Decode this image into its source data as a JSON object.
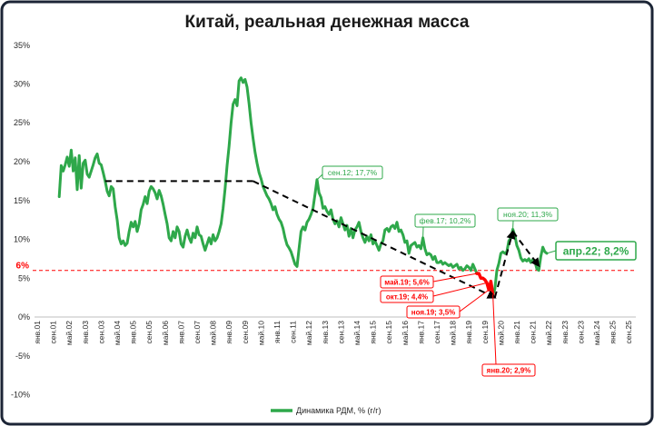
{
  "chart_data": {
    "type": "line",
    "title": "Китай, реальная денежная масса",
    "ylim": [
      -10,
      35
    ],
    "y_ticks": [
      35,
      30,
      25,
      20,
      15,
      10,
      5,
      0,
      -5,
      -10
    ],
    "y_tick_labels": [
      "35%",
      "30%",
      "25%",
      "20%",
      "15%",
      "10%",
      "5%",
      "0%",
      "-5%",
      "-10%"
    ],
    "xlim": [
      "янв.01",
      "сен.25"
    ],
    "x_ticks": [
      "янв.01",
      "сен.01",
      "май.02",
      "янв.03",
      "сен.03",
      "май.04",
      "янв.05",
      "сен.05",
      "май.06",
      "янв.07",
      "сен.07",
      "май.08",
      "янв.09",
      "сен.09",
      "май.10",
      "янв.11",
      "сен.11",
      "май.12",
      "янв.13",
      "сен.13",
      "май.14",
      "янв.15",
      "сен.15",
      "май.16",
      "янв.17",
      "сен.17",
      "май.18",
      "янв.19",
      "сен.19",
      "май.20",
      "янв.21",
      "сен.21",
      "май.22",
      "янв.23",
      "сен.23",
      "май.24",
      "янв.25",
      "сен.25"
    ],
    "grid": false,
    "legend_position": "bottom",
    "series": [
      {
        "name": "Динамика РДМ, % (г/г)",
        "color": "#2ea84a",
        "x": [
          "дек.01",
          "янв.02",
          "фев.02",
          "мар.02",
          "апр.02",
          "май.02",
          "июн.02",
          "июл.02",
          "авг.02",
          "сен.02",
          "окт.02",
          "ноя.02",
          "дек.02",
          "янв.03",
          "фев.03",
          "мар.03",
          "апр.03",
          "май.03",
          "июн.03",
          "июл.03",
          "авг.03",
          "сен.03",
          "окт.03",
          "ноя.03",
          "дек.03",
          "янв.04",
          "фев.04",
          "мар.04",
          "апр.04",
          "май.04",
          "июн.04",
          "июл.04",
          "авг.04",
          "сен.04",
          "окт.04",
          "ноя.04",
          "дек.04",
          "янв.05",
          "фев.05",
          "мар.05",
          "апр.05",
          "май.05",
          "июн.05",
          "июл.05",
          "авг.05",
          "сен.05",
          "окт.05",
          "ноя.05",
          "дек.05",
          "янв.06",
          "фев.06",
          "мар.06",
          "апр.06",
          "май.06",
          "июн.06",
          "июл.06",
          "авг.06",
          "сен.06",
          "окт.06",
          "ноя.06",
          "дек.06",
          "янв.07",
          "фев.07",
          "мар.07",
          "апр.07",
          "май.07",
          "июн.07",
          "июл.07",
          "авг.07",
          "сен.07",
          "окт.07",
          "ноя.07",
          "дек.07",
          "янв.08",
          "фев.08",
          "мар.08",
          "апр.08",
          "май.08",
          "июн.08",
          "июл.08",
          "авг.08",
          "сен.08",
          "окт.08",
          "ноя.08",
          "дек.08",
          "янв.09",
          "фев.09",
          "мар.09",
          "апр.09",
          "май.09",
          "июн.09",
          "июл.09",
          "авг.09",
          "сен.09",
          "окт.09",
          "ноя.09",
          "дек.09",
          "янв.10",
          "фев.10",
          "мар.10",
          "апр.10",
          "май.10",
          "июн.10",
          "июл.10",
          "авг.10",
          "сен.10",
          "окт.10",
          "ноя.10",
          "дек.10",
          "янв.11",
          "фев.11",
          "мар.11",
          "апр.11",
          "май.11",
          "июн.11",
          "июл.11",
          "авг.11",
          "сен.11",
          "окт.11",
          "ноя.11",
          "дек.11",
          "янв.12",
          "фев.12",
          "мар.12",
          "апр.12",
          "май.12",
          "июн.12",
          "июл.12",
          "авг.12",
          "сен.12",
          "окт.12",
          "ноя.12",
          "дек.12",
          "янв.13",
          "фев.13",
          "мар.13",
          "апр.13",
          "май.13",
          "июн.13",
          "июл.13",
          "авг.13",
          "сен.13",
          "окт.13",
          "ноя.13",
          "дек.13",
          "янв.14",
          "фев.14",
          "мар.14",
          "апр.14",
          "май.14",
          "июн.14",
          "июл.14",
          "авг.14",
          "сен.14",
          "окт.14",
          "ноя.14",
          "дек.14",
          "янв.15",
          "фев.15",
          "мар.15",
          "апр.15",
          "май.15",
          "июн.15",
          "июл.15",
          "авг.15",
          "сен.15",
          "окт.15",
          "ноя.15",
          "дек.15",
          "янв.16",
          "фев.16",
          "мар.16",
          "апр.16",
          "май.16",
          "июн.16",
          "июл.16",
          "авг.16",
          "сен.16",
          "окт.16",
          "ноя.16",
          "дек.16",
          "янв.17",
          "фев.17",
          "мар.17",
          "апр.17",
          "май.17",
          "июн.17",
          "июл.17",
          "авг.17",
          "сен.17",
          "окт.17",
          "ноя.17",
          "дек.17",
          "янв.18",
          "фев.18",
          "мар.18",
          "апр.18",
          "май.18",
          "июн.18",
          "июл.18",
          "авг.18",
          "сен.18",
          "окт.18",
          "ноя.18",
          "дек.18",
          "янв.19",
          "фев.19",
          "мар.19",
          "апр.19",
          "май.19",
          "июн.19",
          "июл.19",
          "авг.19",
          "сен.19",
          "окт.19",
          "ноя.19",
          "дек.19",
          "янв.20",
          "фев.20",
          "мар.20",
          "апр.20",
          "май.20",
          "июн.20",
          "июл.20",
          "авг.20",
          "сен.20",
          "окт.20",
          "ноя.20",
          "дек.20",
          "янв.21",
          "фев.21",
          "мар.21",
          "апр.21",
          "май.21",
          "июн.21",
          "июл.21",
          "авг.21",
          "сен.21",
          "окт.21",
          "ноя.21",
          "дек.21",
          "янв.22",
          "фев.22",
          "мар.22",
          "апр.22"
        ],
        "values": [
          15.5,
          19.5,
          18.8,
          19.6,
          20.6,
          19.4,
          21.5,
          18.8,
          20.5,
          16.4,
          20.8,
          16.6,
          19.8,
          20.2,
          18.4,
          18.0,
          18.8,
          19.6,
          20.5,
          21.0,
          19.8,
          19.6,
          18.6,
          17.5,
          16.2,
          15.6,
          16.8,
          16.5,
          14.2,
          12.5,
          10.2,
          9.4,
          9.8,
          9.2,
          9.5,
          11.0,
          12.2,
          11.6,
          12.3,
          11.0,
          12.0,
          13.8,
          14.5,
          15.5,
          14.6,
          16.2,
          16.8,
          16.5,
          16.0,
          15.2,
          16.3,
          15.6,
          14.5,
          13.2,
          12.0,
          10.2,
          9.8,
          11.0,
          10.2,
          11.6,
          11.0,
          9.4,
          9.0,
          10.4,
          11.2,
          10.2,
          9.6,
          10.8,
          10.2,
          11.6,
          10.6,
          10.4,
          9.4,
          8.6,
          9.4,
          10.2,
          9.4,
          10.6,
          9.8,
          10.2,
          11.0,
          12.0,
          14.0,
          16.5,
          19.5,
          22.0,
          25.0,
          27.4,
          28.0,
          27.2,
          30.4,
          30.8,
          30.2,
          30.6,
          29.6,
          27.5,
          25.0,
          23.0,
          21.2,
          19.8,
          18.6,
          17.8,
          16.8,
          16.2,
          15.6,
          15.2,
          14.6,
          13.8,
          14.2,
          13.2,
          12.6,
          12.2,
          11.4,
          10.2,
          9.3,
          8.9,
          8.4,
          7.6,
          6.8,
          6.5,
          8.8,
          11.0,
          11.6,
          11.2,
          12.2,
          12.6,
          13.2,
          14.0,
          15.8,
          17.7,
          16.0,
          15.4,
          14.0,
          14.2,
          13.6,
          13.2,
          13.8,
          12.6,
          12.0,
          12.4,
          11.6,
          12.8,
          12.0,
          11.2,
          11.8,
          10.4,
          11.4,
          10.2,
          11.2,
          11.6,
          12.2,
          11.0,
          10.2,
          9.6,
          10.4,
          9.8,
          10.6,
          9.4,
          9.8,
          9.2,
          8.6,
          9.4,
          9.8,
          11.2,
          11.4,
          11.0,
          11.6,
          11.8,
          11.4,
          12.2,
          11.0,
          11.2,
          10.6,
          9.6,
          9.8,
          8.2,
          9.2,
          9.4,
          9.6,
          9.0,
          9.2,
          8.8,
          10.2,
          8.8,
          8.0,
          8.2,
          8.0,
          7.4,
          7.8,
          7.0,
          7.0,
          7.2,
          6.8,
          7.0,
          6.8,
          6.6,
          6.8,
          6.4,
          6.6,
          6.8,
          6.2,
          6.4,
          6.0,
          6.2,
          6.6,
          6.4,
          6.0,
          6.8,
          6.2,
          5.6,
          5.6,
          5.0,
          5.0,
          4.8,
          4.4,
          3.5,
          4.6,
          2.9,
          3.6,
          6.0,
          6.9,
          8.2,
          8.4,
          8.2,
          8.4,
          9.8,
          10.2,
          11.3,
          10.5,
          9.2,
          8.6,
          7.6,
          7.2,
          7.4,
          7.2,
          7.5,
          7.0,
          7.4,
          7.2,
          6.2,
          6.0,
          7.8,
          9.0,
          8.4,
          8.2
        ]
      }
    ],
    "highlight": {
      "from": "май.19",
      "to": "янв.20",
      "color": "#ff0000"
    },
    "threshold": {
      "value": 6,
      "label": "6%",
      "color": "#ff0000"
    },
    "trend_line": {
      "color": "#000000",
      "points": [
        [
          "ноя.03",
          17.5
        ],
        [
          "янв.10",
          17.5
        ],
        [
          "фев.20",
          2.5
        ],
        [
          "ноя.20",
          11.0
        ],
        [
          "дек.21",
          6.6
        ]
      ]
    },
    "annotations": [
      {
        "x": "сен.12",
        "y": 17.7,
        "label": "сен.12; 17,7%",
        "color": "#2ea84a"
      },
      {
        "x": "фев.17",
        "y": 10.2,
        "label": "фев.17; 10,2%",
        "color": "#2ea84a"
      },
      {
        "x": "ноя.20",
        "y": 11.3,
        "label": "ноя.20; 11,3%",
        "color": "#2ea84a"
      },
      {
        "x": "апр.22",
        "y": 8.2,
        "label": "апр.22; 8,2%",
        "color": "#2ea84a"
      },
      {
        "x": "май.19",
        "y": 5.6,
        "label": "май.19; 5,6%",
        "color": "#ff0000"
      },
      {
        "x": "окт.19",
        "y": 4.4,
        "label": "окт.19; 4,4%",
        "color": "#ff0000"
      },
      {
        "x": "ноя.19",
        "y": 3.5,
        "label": "ноя.19; 3,5%",
        "color": "#ff0000"
      },
      {
        "x": "янв.20",
        "y": 2.9,
        "label": "янв.20; 2,9%",
        "color": "#ff0000"
      }
    ]
  }
}
